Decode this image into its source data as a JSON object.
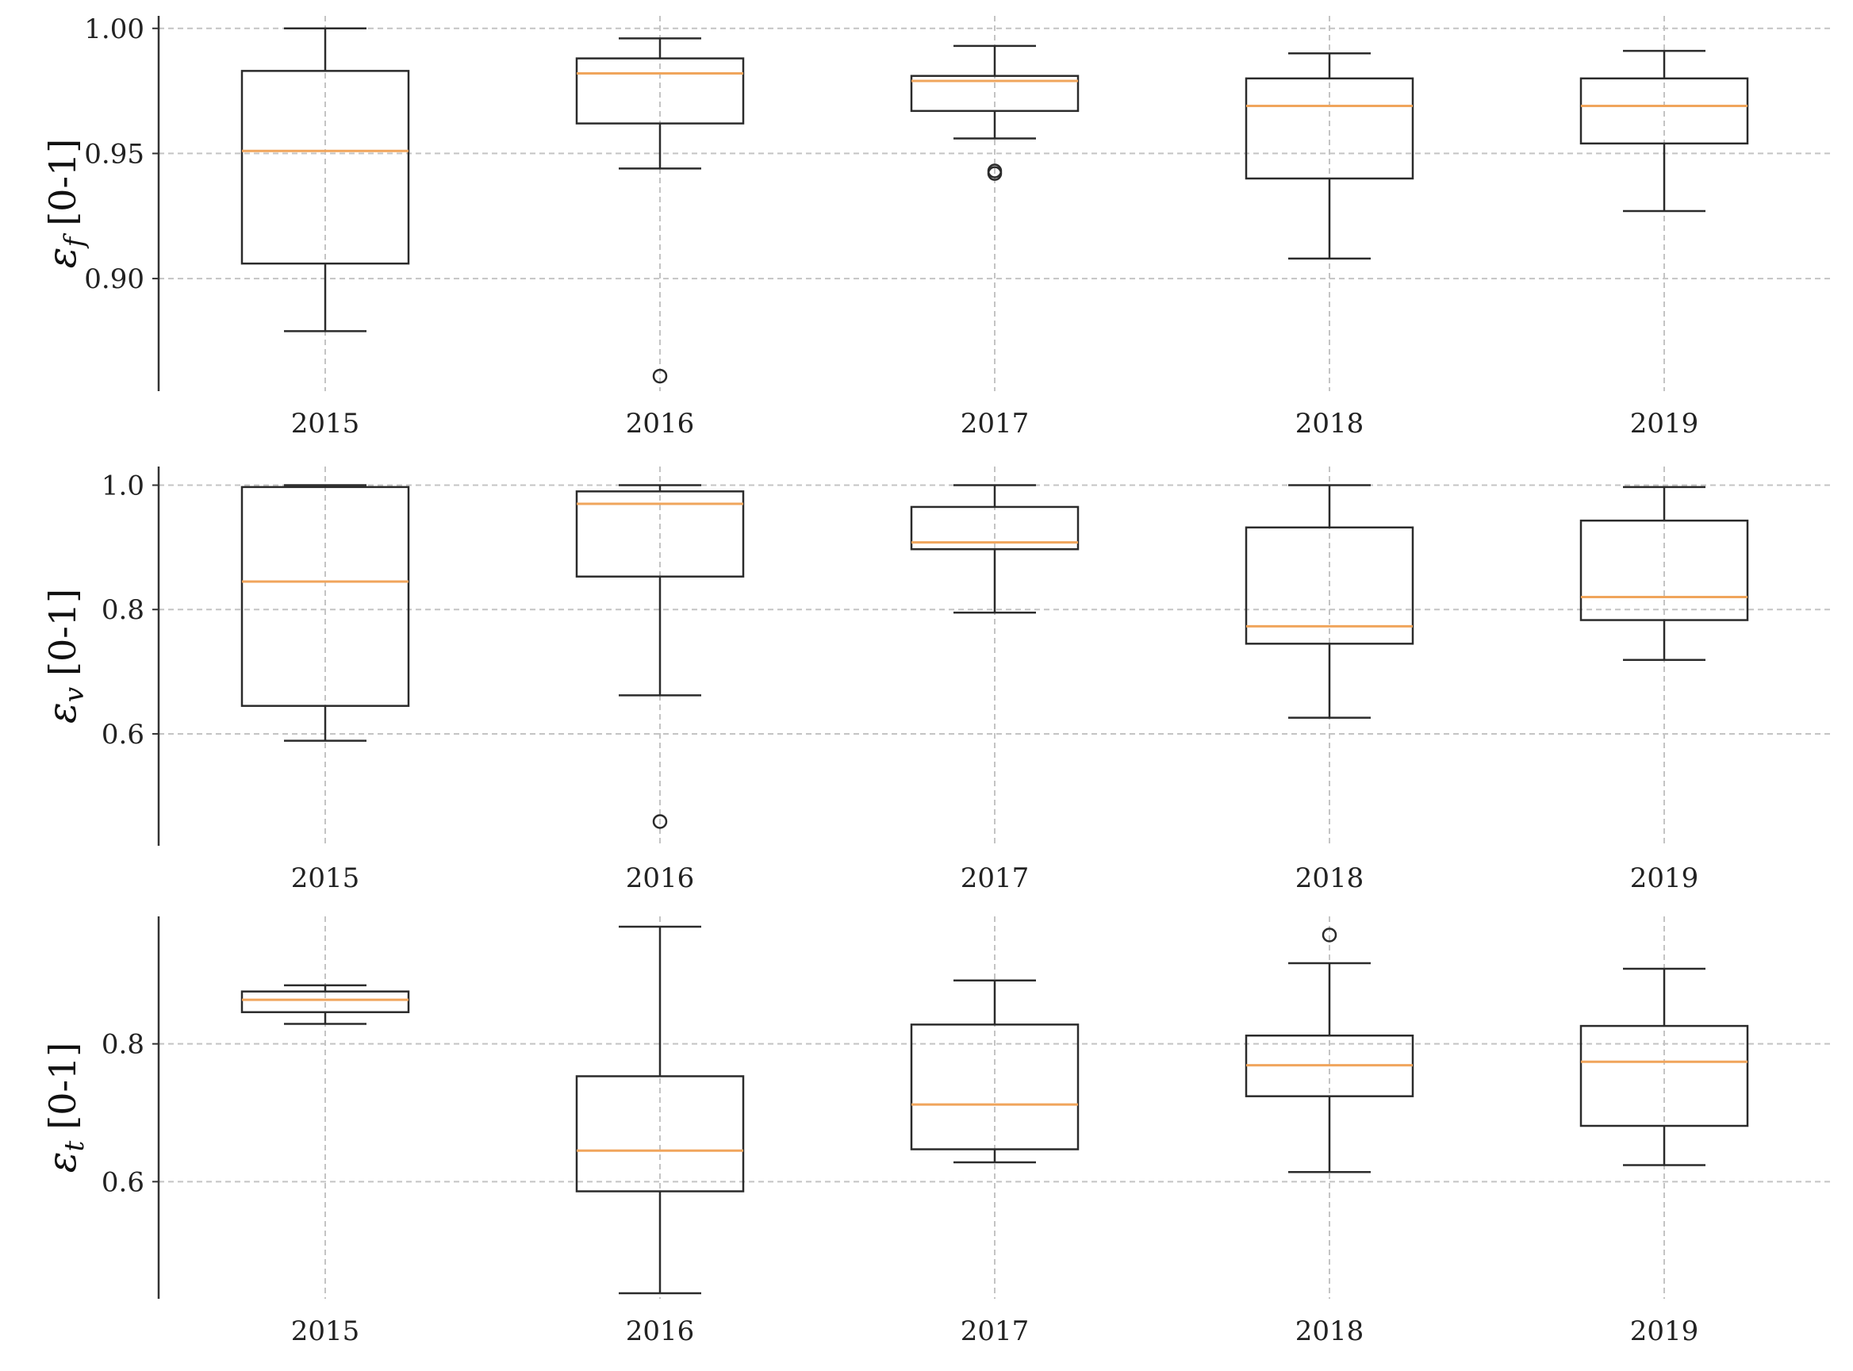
{
  "chart_data": [
    {
      "type": "boxplot",
      "ylabel": {
        "symbol": "ε",
        "subscript": "f",
        "unit": "[0-1]"
      },
      "ylim": [
        0.855,
        1.005
      ],
      "yticks": [
        0.9,
        0.95,
        1.0
      ],
      "ytick_labels": [
        "0.90",
        "0.95",
        "1.00"
      ],
      "categories": [
        "2015",
        "2016",
        "2017",
        "2018",
        "2019"
      ],
      "grid": true,
      "boxes": [
        {
          "category": "2015",
          "whislo": 0.879,
          "q1": 0.906,
          "med": 0.951,
          "q3": 0.983,
          "whishi": 1.0,
          "fliers": []
        },
        {
          "category": "2016",
          "whislo": 0.944,
          "q1": 0.962,
          "med": 0.982,
          "q3": 0.988,
          "whishi": 0.996,
          "fliers": [
            0.861
          ]
        },
        {
          "category": "2017",
          "whislo": 0.956,
          "q1": 0.967,
          "med": 0.979,
          "q3": 0.981,
          "whishi": 0.993,
          "fliers": [
            0.943,
            0.942
          ]
        },
        {
          "category": "2018",
          "whislo": 0.908,
          "q1": 0.94,
          "med": 0.969,
          "q3": 0.98,
          "whishi": 0.99,
          "fliers": []
        },
        {
          "category": "2019",
          "whislo": 0.927,
          "q1": 0.954,
          "med": 0.969,
          "q3": 0.98,
          "whishi": 0.991,
          "fliers": []
        }
      ]
    },
    {
      "type": "boxplot",
      "ylabel": {
        "symbol": "ε",
        "subscript": "v",
        "unit": "[0-1]"
      },
      "ylim": [
        0.42,
        1.03
      ],
      "yticks": [
        0.6,
        0.8,
        1.0
      ],
      "ytick_labels": [
        "0.6",
        "0.8",
        "1.0"
      ],
      "categories": [
        "2015",
        "2016",
        "2017",
        "2018",
        "2019"
      ],
      "grid": true,
      "boxes": [
        {
          "category": "2015",
          "whislo": 0.589,
          "q1": 0.645,
          "med": 0.845,
          "q3": 0.997,
          "whishi": 1.0,
          "fliers": []
        },
        {
          "category": "2016",
          "whislo": 0.662,
          "q1": 0.853,
          "med": 0.97,
          "q3": 0.99,
          "whishi": 1.0,
          "fliers": [
            0.459
          ]
        },
        {
          "category": "2017",
          "whislo": 0.795,
          "q1": 0.897,
          "med": 0.908,
          "q3": 0.965,
          "whishi": 1.0,
          "fliers": []
        },
        {
          "category": "2018",
          "whislo": 0.626,
          "q1": 0.745,
          "med": 0.773,
          "q3": 0.932,
          "whishi": 1.0,
          "fliers": []
        },
        {
          "category": "2019",
          "whislo": 0.719,
          "q1": 0.783,
          "med": 0.82,
          "q3": 0.943,
          "whishi": 0.997,
          "fliers": []
        }
      ]
    },
    {
      "type": "boxplot",
      "ylabel": {
        "symbol": "ε",
        "subscript": "t",
        "unit": "[0-1]"
      },
      "ylim": [
        0.43,
        0.985
      ],
      "yticks": [
        0.6,
        0.8
      ],
      "ytick_labels": [
        "0.6",
        "0.8"
      ],
      "categories": [
        "2015",
        "2016",
        "2017",
        "2018",
        "2019"
      ],
      "grid": true,
      "boxes": [
        {
          "category": "2015",
          "whislo": 0.829,
          "q1": 0.846,
          "med": 0.864,
          "q3": 0.876,
          "whishi": 0.885,
          "fliers": []
        },
        {
          "category": "2016",
          "whislo": 0.438,
          "q1": 0.586,
          "med": 0.645,
          "q3": 0.753,
          "whishi": 0.97,
          "fliers": []
        },
        {
          "category": "2017",
          "whislo": 0.628,
          "q1": 0.647,
          "med": 0.712,
          "q3": 0.828,
          "whishi": 0.892,
          "fliers": []
        },
        {
          "category": "2018",
          "whislo": 0.614,
          "q1": 0.724,
          "med": 0.769,
          "q3": 0.812,
          "whishi": 0.917,
          "fliers": [
            0.958
          ]
        },
        {
          "category": "2019",
          "whislo": 0.624,
          "q1": 0.681,
          "med": 0.774,
          "q3": 0.826,
          "whishi": 0.909,
          "fliers": []
        }
      ]
    }
  ],
  "colors": {
    "box": "#2b2b2b",
    "median": "#f0a55c",
    "grid": "#c4c4c4",
    "axis": "#333333",
    "text": "#222222"
  }
}
